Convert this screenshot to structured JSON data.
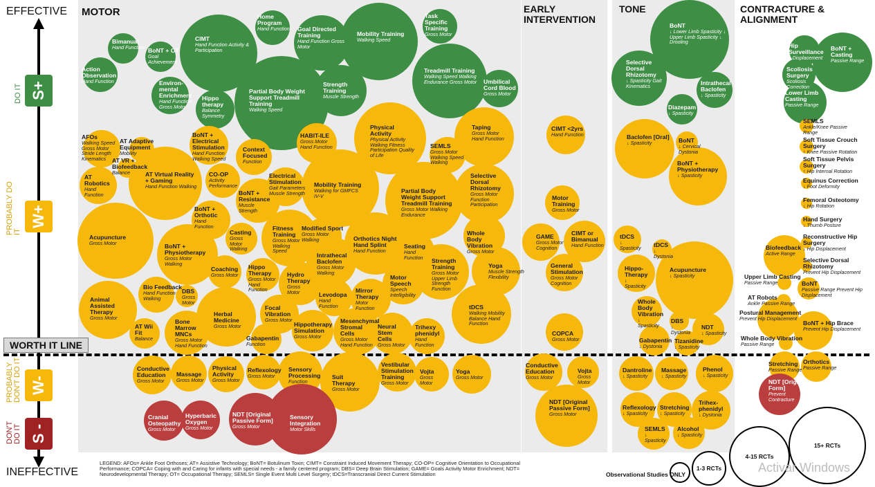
{
  "axis": {
    "top": "EFFECTIVE",
    "bottom": "INEFFECTIVE"
  },
  "levels": [
    {
      "grade": "S+",
      "label": "DO IT",
      "color": "#3e8e45"
    },
    {
      "grade": "W+",
      "label": "PROBABLY DO IT",
      "color": "#f6b80a"
    },
    {
      "grade": "W-",
      "label": "PROBABLY DON'T DO IT",
      "color": "#f6b80a"
    },
    {
      "grade": "S -",
      "label": "DON'T DO IT",
      "color": "#a02323"
    }
  ],
  "worth_line": "WORTH IT LINE",
  "sections": [
    "MOTOR",
    "EARLY INTERVENTION",
    "TONE",
    "CONTRACTURE & ALIGNMENT"
  ],
  "legend": "LEGEND: AFOs= Ankle Foot Orthoses; AT= Assistive Technology; BoNT= Botulinum Toxin; CIMT= Constraint Induced Movement Therapy; CO-OP= Cognitive Orientation to Occupational Performance; COPCA= Coping with and Caring for infants with special needs - a family centered program; DBS= Deep Brain Stimulation; GAME= Goals Activity Motor Enrichment; NDT= Neurodevelopmental Therapy; OT= Occupational Therapy; SEMLS= Single Event Multi Level Surgery; tDCS=Transcranial Direct Current Stimulation",
  "size_key": [
    "Observational Studies ONLY",
    "1-3 RCTs",
    "4-15 RCTs",
    "15+ RCTs"
  ],
  "watermark": "Activar Windows",
  "interventions": [
    {
      "t": "Bimanual",
      "s": "Hand Function",
      "c": "g"
    },
    {
      "t": "BoNT + OT",
      "s": "Goal Achievement",
      "c": "g"
    },
    {
      "t": "Action Observation",
      "s": "Hand Function",
      "c": "g"
    },
    {
      "t": "CIMT",
      "s": "Hand Function Activity & Participation",
      "c": "g"
    },
    {
      "t": "Home Program",
      "s": "Hand Function",
      "c": "g"
    },
    {
      "t": "Goal Directed Training",
      "s": "Hand Function Gross Motor",
      "c": "g"
    },
    {
      "t": "Mobility Training",
      "s": "Walking Speed",
      "c": "g"
    },
    {
      "t": "Task Specific Training",
      "s": "Gross Motor",
      "c": "g"
    },
    {
      "t": "Environ-mental Enrichment",
      "s": "Hand Function Gross Motor",
      "c": "g"
    },
    {
      "t": "Hippo therapy",
      "s": "Balance Symmetry",
      "c": "g"
    },
    {
      "t": "Partial Body Weight Support Treadmill Training",
      "s": "Walking Speed",
      "c": "g"
    },
    {
      "t": "Strength Training",
      "s": "Muscle Strength",
      "c": "g"
    },
    {
      "t": "Treadmill Training",
      "s": "Walking Speed Walking Endurance Gross Motor",
      "c": "g"
    },
    {
      "t": "Umbilical Cord Blood",
      "s": "Gross Motor",
      "c": "g"
    },
    {
      "t": "AFOs",
      "s": "Walking Speed Gross Motor Stride Length Kinematics",
      "c": "y"
    },
    {
      "t": "AT Adaptive Equipment",
      "s": "Mobility",
      "c": "y"
    },
    {
      "t": "AT VR + Biofeedback",
      "s": "Balance",
      "c": "y"
    },
    {
      "t": "AT Virtual Reality + Gaming",
      "s": "Hand Function Walking",
      "c": "y"
    },
    {
      "t": "BoNT + Electrical Stimulation",
      "s": "Hand Function Walking Speed",
      "c": "y"
    },
    {
      "t": "Context Focused",
      "s": "Function",
      "c": "y"
    },
    {
      "t": "HABIT-ILE",
      "s": "Gross Motor Hand Function",
      "c": "y"
    },
    {
      "t": "Physical Activity",
      "s": "Physical Activity Walking Fitness Participation Quality of Life",
      "c": "y"
    },
    {
      "t": "SEMLS",
      "s": "Gross Motor Walking Speed Walking",
      "c": "y"
    },
    {
      "t": "Taping",
      "s": "Gross Motor Hand Function",
      "c": "y"
    },
    {
      "t": "AT Robotics",
      "s": "Hand Function",
      "c": "y"
    },
    {
      "t": "CO-OP",
      "s": "Activity Performance",
      "c": "y"
    },
    {
      "t": "Electrical Stimulation",
      "s": "Gait Parameters Muscle Strength",
      "c": "y"
    },
    {
      "t": "Mobility Training",
      "s": "Walking for GMFCS IV-V",
      "c": "y"
    },
    {
      "t": "Selective Dorsal Rhizotomy",
      "s": "Gross Motor Function Participation",
      "c": "y"
    },
    {
      "t": "BoNT + Resistance",
      "s": "Muscle Strength",
      "c": "y"
    },
    {
      "t": "Partial Body Weight Support Treadmill Training",
      "s": "Gross Motor Walking Endurance",
      "c": "y"
    },
    {
      "t": "BoNT + Orthotic",
      "s": "Hand Function",
      "c": "y"
    },
    {
      "t": "Acupuncture",
      "s": "Gross Motor",
      "c": "y"
    },
    {
      "t": "Casting",
      "s": "Gross Motor Walking",
      "c": "y"
    },
    {
      "t": "Fitness Training",
      "s": "Gross Motor Walking Speed",
      "c": "y"
    },
    {
      "t": "Modified Sport",
      "s": "Gross Motor Walking",
      "c": "y"
    },
    {
      "t": "Orthotics Night Hand Splint",
      "s": "Hand Function",
      "c": "y"
    },
    {
      "t": "Whole Body Vibration",
      "s": "Gross Motor",
      "c": "y"
    },
    {
      "t": "BoNT + Physiotherapy",
      "s": "Gross Motor Walking",
      "c": "y"
    },
    {
      "t": "Intrathecal Baclofen",
      "s": "Gross Motor Walking",
      "c": "y"
    },
    {
      "t": "Seating",
      "s": "Hand Function",
      "c": "y"
    },
    {
      "t": "Strength Training",
      "s": "Gross Motor Upper Limb Strength Function",
      "c": "y"
    },
    {
      "t": "Coaching",
      "s": "Gross Motor",
      "c": "y"
    },
    {
      "t": "Hippo Therapy",
      "s": "Gross Motor Hand Function",
      "c": "y"
    },
    {
      "t": "Hydro Therapy",
      "s": "Gross Motor",
      "c": "y"
    },
    {
      "t": "Yoga",
      "s": "Muscle Strength Flexibility",
      "c": "y"
    },
    {
      "t": "Motor Speech",
      "s": "Speech Intelligibility",
      "c": "y"
    },
    {
      "t": "Animal Assisted Therapy",
      "s": "Gross Motor",
      "c": "y"
    },
    {
      "t": "Bio Feedback",
      "s": "Hand Function Walking",
      "c": "y"
    },
    {
      "t": "DBS",
      "s": "Gross Motor",
      "c": "y"
    },
    {
      "t": "Levodopa",
      "s": "Hand Function",
      "c": "y"
    },
    {
      "t": "Mirror Therapy",
      "s": "Motor Function",
      "c": "y"
    },
    {
      "t": "Herbal Medicine",
      "s": "Gross Motor",
      "c": "y"
    },
    {
      "t": "Focal Vibration",
      "s": "Gross Motor",
      "c": "y"
    },
    {
      "t": "tDCS",
      "s": "Walking Mobility Balance Hand Function",
      "c": "y"
    },
    {
      "t": "AT Wii Fit",
      "s": "Balance",
      "c": "y"
    },
    {
      "t": "Bone Marrow MNCs",
      "s": "Gross Motor Hand Function",
      "c": "y"
    },
    {
      "t": "Hippotherapy Simulation",
      "s": "Gross Motor",
      "c": "y"
    },
    {
      "t": "Mesenchymal Stromal Cells",
      "s": "Gross Motor Hand Function",
      "c": "y"
    },
    {
      "t": "Neural Stem Cells",
      "s": "Gross Motor",
      "c": "y"
    },
    {
      "t": "Trihexy phenidyl",
      "s": "Hand Function",
      "c": "y"
    },
    {
      "t": "Gabapentin",
      "s": "Function",
      "c": "y"
    },
    {
      "t": "Conductive Education",
      "s": "Gross Motor",
      "c": "y"
    },
    {
      "t": "Massage",
      "s": "Gross Motor",
      "c": "y"
    },
    {
      "t": "Physical Activity",
      "s": "Gross Motor",
      "c": "y"
    },
    {
      "t": "Reflexology",
      "s": "Gross Motor",
      "c": "y"
    },
    {
      "t": "Sensory Processing",
      "s": "Function",
      "c": "y"
    },
    {
      "t": "Suit Therapy",
      "s": "Gross Motor",
      "c": "y"
    },
    {
      "t": "Vestibular Stimulation Training",
      "s": "Gross Motor",
      "c": "y"
    },
    {
      "t": "Vojta",
      "s": "Gross Motor",
      "c": "y"
    },
    {
      "t": "Yoga",
      "s": "Gross Motor",
      "c": "y"
    },
    {
      "t": "Cranial Osteopathy",
      "s": "Gross Motor",
      "c": "r"
    },
    {
      "t": "Hyperbaric Oxygen",
      "s": "Gross Motor",
      "c": "r"
    },
    {
      "t": "NDT [Original Passive Form]",
      "s": "Gross Motor",
      "c": "r"
    },
    {
      "t": "Sensory Integration",
      "s": "Motor Skills",
      "c": "r"
    },
    {
      "t": "CIMT <2yrs",
      "s": "Hand Function",
      "c": "y"
    },
    {
      "t": "Motor Training",
      "s": "Gross Motor",
      "c": "y"
    },
    {
      "t": "GAME",
      "s": "Gross Motor Cognition",
      "c": "y"
    },
    {
      "t": "CIMT or Bimanual",
      "s": "Hand Function",
      "c": "y"
    },
    {
      "t": "General Stimulation",
      "s": "Gross Motor Cognition",
      "c": "y"
    },
    {
      "t": "COPCA",
      "s": "Gross Motor",
      "c": "y"
    },
    {
      "t": "Conductive Education",
      "s": "Gross Motor",
      "c": "y"
    },
    {
      "t": "Vojta",
      "s": "Gross Motor",
      "c": "y"
    },
    {
      "t": "NDT [Original Passive Form]",
      "s": "Gross Motor",
      "c": "y"
    },
    {
      "t": "BoNT",
      "s": "↓ Lower Limb Spasticity ↓ Upper Limb Spasticity ↓ Drooling",
      "c": "g"
    },
    {
      "t": "Selective Dorsal Rhizotomy",
      "s": "↓ Spasticity Gait Kinematics",
      "c": "g"
    },
    {
      "t": "Intrathecal Baclofen",
      "s": "↓ Spasticity",
      "c": "g"
    },
    {
      "t": "Diazepam",
      "s": "↓ Spasticity",
      "c": "g"
    },
    {
      "t": "Baclofen [Oral]",
      "s": "↓ Spasticity",
      "c": "y"
    },
    {
      "t": "BoNT",
      "s": "↓ Cervical Dystonia",
      "c": "y"
    },
    {
      "t": "BoNT + Physiotherapy",
      "s": "↓ Spasticity",
      "c": "y"
    },
    {
      "t": "tDCS",
      "s": "↓ Spasticity",
      "c": "y"
    },
    {
      "t": "tDCS",
      "s": "↓ Dystonia",
      "c": "y"
    },
    {
      "t": "Hippo-Therapy",
      "s": "↓ Spasticity",
      "c": "y"
    },
    {
      "t": "Acupuncture",
      "s": "↓ Spasticity",
      "c": "y"
    },
    {
      "t": "Whole Body Vibration",
      "s": "↓ Spasticity",
      "c": "y"
    },
    {
      "t": "DBS",
      "s": "↓ Dystonia",
      "c": "y"
    },
    {
      "t": "NDT",
      "s": "↓ Spasticity",
      "c": "y"
    },
    {
      "t": "Gabapentin",
      "s": "↓ Dystonia",
      "c": "y"
    },
    {
      "t": "Tizanidine",
      "s": "↓ Spasticity",
      "c": "y"
    },
    {
      "t": "Dantroline",
      "s": "↓ Spasticity",
      "c": "y"
    },
    {
      "t": "Massage",
      "s": "↓ Spasticity",
      "c": "y"
    },
    {
      "t": "Phenol",
      "s": "↓ Spasticity",
      "c": "y"
    },
    {
      "t": "Reflexology",
      "s": "↓ Spasticity",
      "c": "y"
    },
    {
      "t": "Stretching",
      "s": "↓ Spasticity",
      "c": "y"
    },
    {
      "t": "Trihex-phenidyl",
      "s": "↓ Dystonia",
      "c": "y"
    },
    {
      "t": "SEMLS",
      "s": "↓ Spasticity",
      "c": "y"
    },
    {
      "t": "Alcohol",
      "s": "↓ Spasticity",
      "c": "y"
    },
    {
      "t": "Hip Surveillance",
      "s": "↓ Displacement",
      "c": "g"
    },
    {
      "t": "BoNT + Casting",
      "s": "Passive Range",
      "c": "g"
    },
    {
      "t": "Scoliosis Surgery",
      "s": "Scoliosis Correction",
      "c": "g"
    },
    {
      "t": "Lower Limb Casting",
      "s": "Passive Range",
      "c": "g"
    },
    {
      "t": "SEMLS",
      "s": "Ankle/Knee Passive Range",
      "c": "y"
    },
    {
      "t": "Soft Tissue Crouch Surgery",
      "s": "↑ Knee Passive Rotation",
      "c": "y"
    },
    {
      "t": "Soft Tissue Pelvis Surgery",
      "s": "↑ Hip Internal Rotation",
      "c": "y"
    },
    {
      "t": "Equinus Correction",
      "s": "↓ Foot Deformity",
      "c": "y"
    },
    {
      "t": "Femoral Osteotomy",
      "s": "↓ Hip Rotation",
      "c": "y"
    },
    {
      "t": "Hand Surgery",
      "s": "↓ Thumb Posture",
      "c": "y"
    },
    {
      "t": "Biofeedback",
      "s": "Active Range",
      "c": "y"
    },
    {
      "t": "Reconstructive Hip Surgery",
      "s": "↓ Hip Displacement",
      "c": "y"
    },
    {
      "t": "Selective Dorsal Rhizotomy",
      "s": "Prevent Hip Displacement",
      "c": "y"
    },
    {
      "t": "Upper Limb Casting",
      "s": "Passive Range",
      "c": "y"
    },
    {
      "t": "BoNT",
      "s": "Passive Range Prevent Hip Displacement",
      "c": "y"
    },
    {
      "t": "AT Robots",
      "s": "Ankle Passive Range",
      "c": "y"
    },
    {
      "t": "Postural Management",
      "s": "Prevent Hip Displacement",
      "c": "y"
    },
    {
      "t": "BoNT + Hip Brace",
      "s": "Prevent Hip Displacement",
      "c": "y"
    },
    {
      "t": "Whole Body Vibration",
      "s": "Passive Range",
      "c": "y"
    },
    {
      "t": "Stretching",
      "s": "Passive Range",
      "c": "y"
    },
    {
      "t": "Orthotics",
      "s": "Passive Range",
      "c": "y"
    },
    {
      "t": "NDT [Original Form]",
      "s": "Prevent Contracture",
      "c": "r"
    }
  ]
}
